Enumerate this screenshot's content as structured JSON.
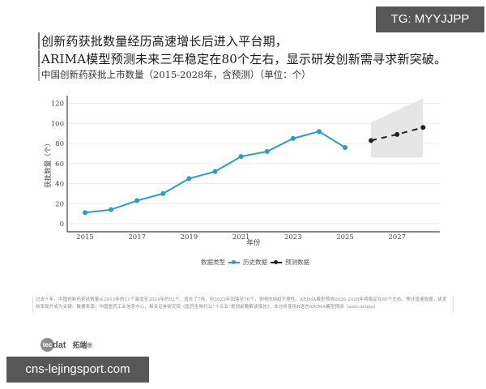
{
  "watermark_top": "TG: MYYJJPP",
  "watermark_bottom": "cns-lejingsport.com",
  "headline": {
    "line1": "创新药获批数量经历高速增长后进入平台期，",
    "line2": "ARIMA模型预测未来三年稳定在80个左右，显示研发创新需寻求新突破。"
  },
  "subtitle": "中国创新药获批上市数量（2015-2028年，含预测）（单位：个）",
  "legend": {
    "title": "数据类型",
    "items": [
      {
        "label": "历史数据",
        "color": "#2a9dc4"
      },
      {
        "label": "预测数据",
        "color": "#222222"
      }
    ]
  },
  "footnote": "过去十年，中国创新药获批数量从2015年的11个激增至2024年的92个，增长了7倍，但2025年回落至76个，表明市场趋于理性。ARIMA模型预测2026-2028年将稳定在80个左右，预计增速放缓，研发效率提升成为关键。数据来源：中国医药工业信息中心、相关证券研究院《医药生物行业“十五五”规划前瞻解读报告》，本分析使用R语言ARIMA模型预测（auto.arima）",
  "logo": {
    "mark": "tec",
    "text": "dat",
    "cn": "拓端®"
  },
  "chart_data": {
    "type": "line",
    "title": "中国创新药获批上市数量（2015-2028年，含预测）（单位：个）",
    "xlabel": "年份",
    "ylabel": "获批数量（个）",
    "xlim": [
      2014.3,
      2028.6
    ],
    "ylim": [
      -8,
      135
    ],
    "x_ticks": [
      "2015",
      "2017",
      "2019",
      "2021",
      "2023",
      "2025",
      "2027"
    ],
    "y_ticks": [
      "0",
      "20",
      "40",
      "60",
      "80",
      "100",
      "120"
    ],
    "grid": true,
    "legend_position": "bottom",
    "series": [
      {
        "name": "历史数据",
        "color": "#2a9dc4",
        "style": "solid",
        "x": [
          2015,
          2016,
          2017,
          2018,
          2019,
          2020,
          2021,
          2022,
          2023,
          2024,
          2025
        ],
        "values": [
          11,
          14,
          23,
          30,
          45,
          52,
          67,
          72,
          85,
          92,
          76
        ]
      },
      {
        "name": "预测数据",
        "color": "#222222",
        "style": "dashed",
        "x": [
          2026,
          2027,
          2028
        ],
        "values": [
          83,
          89,
          96
        ]
      }
    ],
    "confidence_band": {
      "x": [
        2026,
        2028
      ],
      "upper": [
        101,
        125
      ],
      "lower": [
        66,
        66
      ],
      "color": "#e6e6e6"
    }
  }
}
